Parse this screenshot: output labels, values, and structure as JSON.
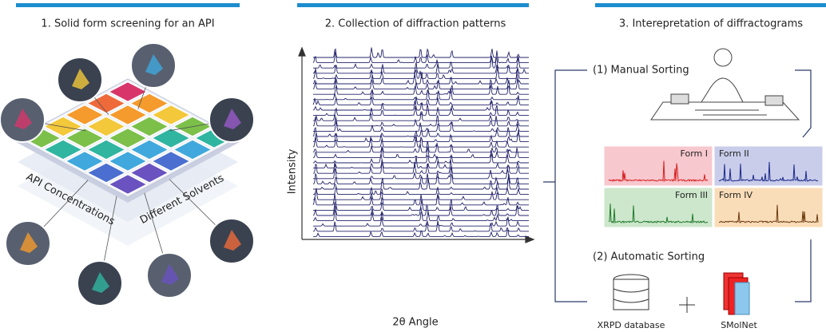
{
  "panels": [
    {
      "title": "1. Solid form screening for an API",
      "labels": [
        "API Concentrations",
        "Different Solvents"
      ]
    },
    {
      "title": "2. Collection of diffraction patterns",
      "y_label": "Intensity",
      "x_label": "2θ Angle"
    },
    {
      "title": "3. Interepretation of diffractograms",
      "manual": "(1) Manual Sorting",
      "forms": [
        "Form I",
        "Form II",
        "Form III",
        "Form IV"
      ],
      "automatic": "(2) Automatic Sorting",
      "database": "XRPD database",
      "model": "SMolNet"
    }
  ]
}
